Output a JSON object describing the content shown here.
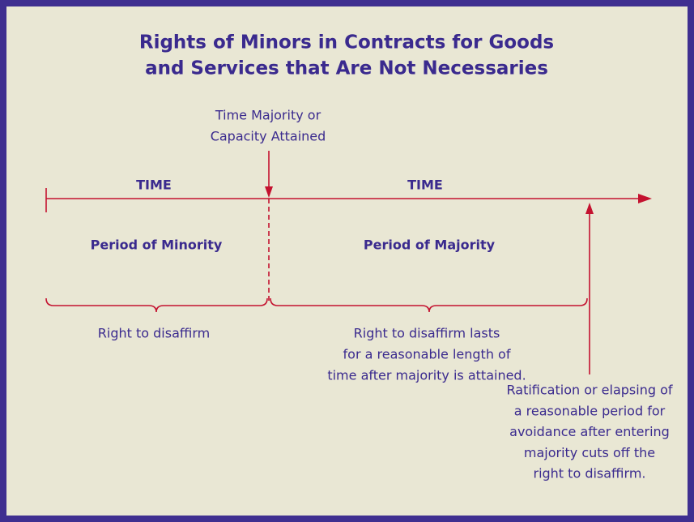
{
  "title": [
    "Rights of Minors in Contracts for Goods",
    "and Services that Are Not Necessaries"
  ],
  "milestone": [
    "Time Majority or",
    "Capacity Attained"
  ],
  "time_labels": [
    "TIME",
    "TIME"
  ],
  "periods": [
    "Period of Minority",
    "Period of Majority"
  ],
  "minority_right": [
    "Right to disaffirm"
  ],
  "majority_right": [
    "Right to disaffirm lasts",
    "for a reasonable length of",
    "time after majority is attained."
  ],
  "cutoff": [
    "Ratification or elapsing of",
    "a reasonable period for",
    "avoidance after entering",
    "majority cuts off the",
    "right to disaffirm."
  ]
}
